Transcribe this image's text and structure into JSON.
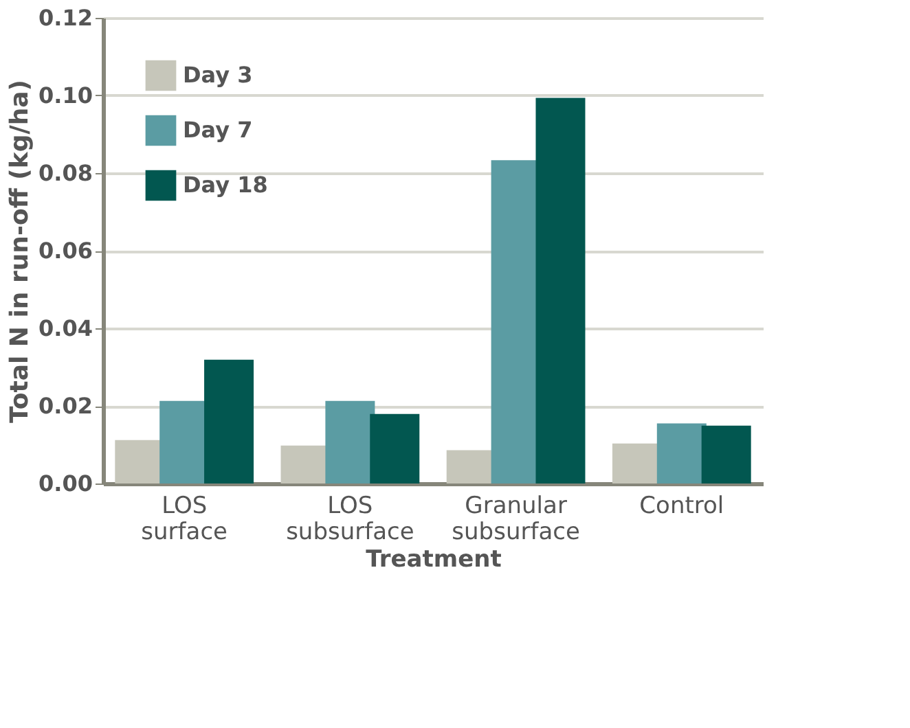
{
  "chart_data": {
    "type": "bar",
    "xlabel": "Treatment",
    "ylabel": "Total N in run-off (kg/ha)",
    "categories": [
      "LOS surface",
      "LOS subsurface",
      "Granular subsurface",
      "Control"
    ],
    "series": [
      {
        "name": "Day 3",
        "color": "#c6c6ba",
        "values": [
          0.0112,
          0.0098,
          0.0086,
          0.0103
        ]
      },
      {
        "name": "Day 7",
        "color": "#5b9ca3",
        "values": [
          0.0213,
          0.0213,
          0.0833,
          0.0155
        ]
      },
      {
        "name": "Day 18",
        "color": "#025750",
        "values": [
          0.0319,
          0.0179,
          0.0994,
          0.0149
        ]
      }
    ],
    "ylim": [
      0,
      0.12
    ],
    "yticks": [
      {
        "value": 0,
        "label": "0.00"
      },
      {
        "value": 0.02,
        "label": "0.02"
      },
      {
        "value": 0.04,
        "label": "0.04"
      },
      {
        "value": 0.06,
        "label": "0.06"
      },
      {
        "value": 0.08,
        "label": "0.08"
      },
      {
        "value": 0.1,
        "label": "0.10"
      },
      {
        "value": 0.12,
        "label": "0.12"
      }
    ],
    "grid": "y",
    "legend": "top left"
  }
}
